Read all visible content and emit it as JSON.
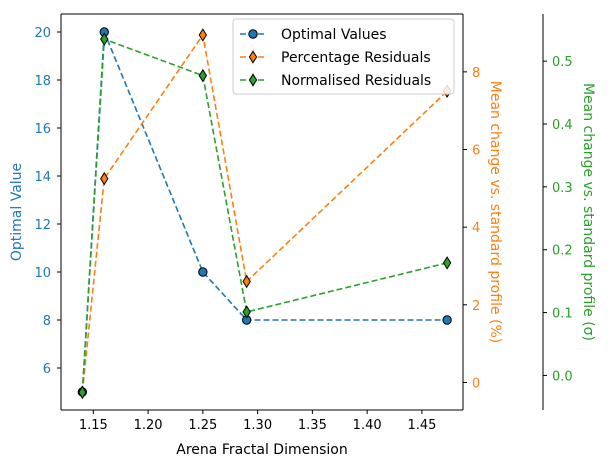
{
  "chart_data": {
    "type": "line",
    "xlabel": "Arena Fractal Dimension",
    "xlim": [
      1.1205,
      1.4875
    ],
    "x_ticks": [
      "1.15",
      "1.20",
      "1.25",
      "1.30",
      "1.35",
      "1.40",
      "1.45"
    ],
    "axes": {
      "left": {
        "label": "Optimal Value",
        "color": "#1f77b4",
        "ylim": [
          4.25,
          20.75
        ],
        "ticks": [
          "6",
          "8",
          "10",
          "12",
          "14",
          "16",
          "18",
          "20"
        ]
      },
      "right1": {
        "label": "Mean change vs. standard profile (%)",
        "color": "#ff7f0e",
        "ylim": [
          -0.71,
          9.49
        ],
        "ticks": [
          "0",
          "2",
          "4",
          "6",
          "8"
        ]
      },
      "right2": {
        "label": "Mean change vs. standard profile (σ)",
        "color": "#2ca02c",
        "ylim": [
          -0.055,
          0.575
        ],
        "ticks": [
          "0.0",
          "0.1",
          "0.2",
          "0.3",
          "0.4",
          "0.5"
        ]
      }
    },
    "series": [
      {
        "name": "Optimal Values",
        "axis": "left",
        "color": "#1f77b4",
        "marker": "circle",
        "x": [
          1.14,
          1.16,
          1.25,
          1.29,
          1.473
        ],
        "y": [
          5,
          20,
          10,
          8,
          8
        ]
      },
      {
        "name": "Percentage Residuals",
        "axis": "right1",
        "color": "#ff7f0e",
        "marker": "thin-diamond",
        "x": [
          1.14,
          1.16,
          1.25,
          1.29,
          1.473
        ],
        "y": [
          -0.25,
          5.25,
          8.95,
          2.6,
          7.5
        ]
      },
      {
        "name": "Normalised Residuals",
        "axis": "right2",
        "color": "#2ca02c",
        "marker": "thin-diamond",
        "x": [
          1.14,
          1.16,
          1.25,
          1.29,
          1.473
        ],
        "y": [
          -0.027,
          0.535,
          0.477,
          0.101,
          0.179
        ]
      }
    ],
    "legend": "top-right",
    "grid": false
  }
}
